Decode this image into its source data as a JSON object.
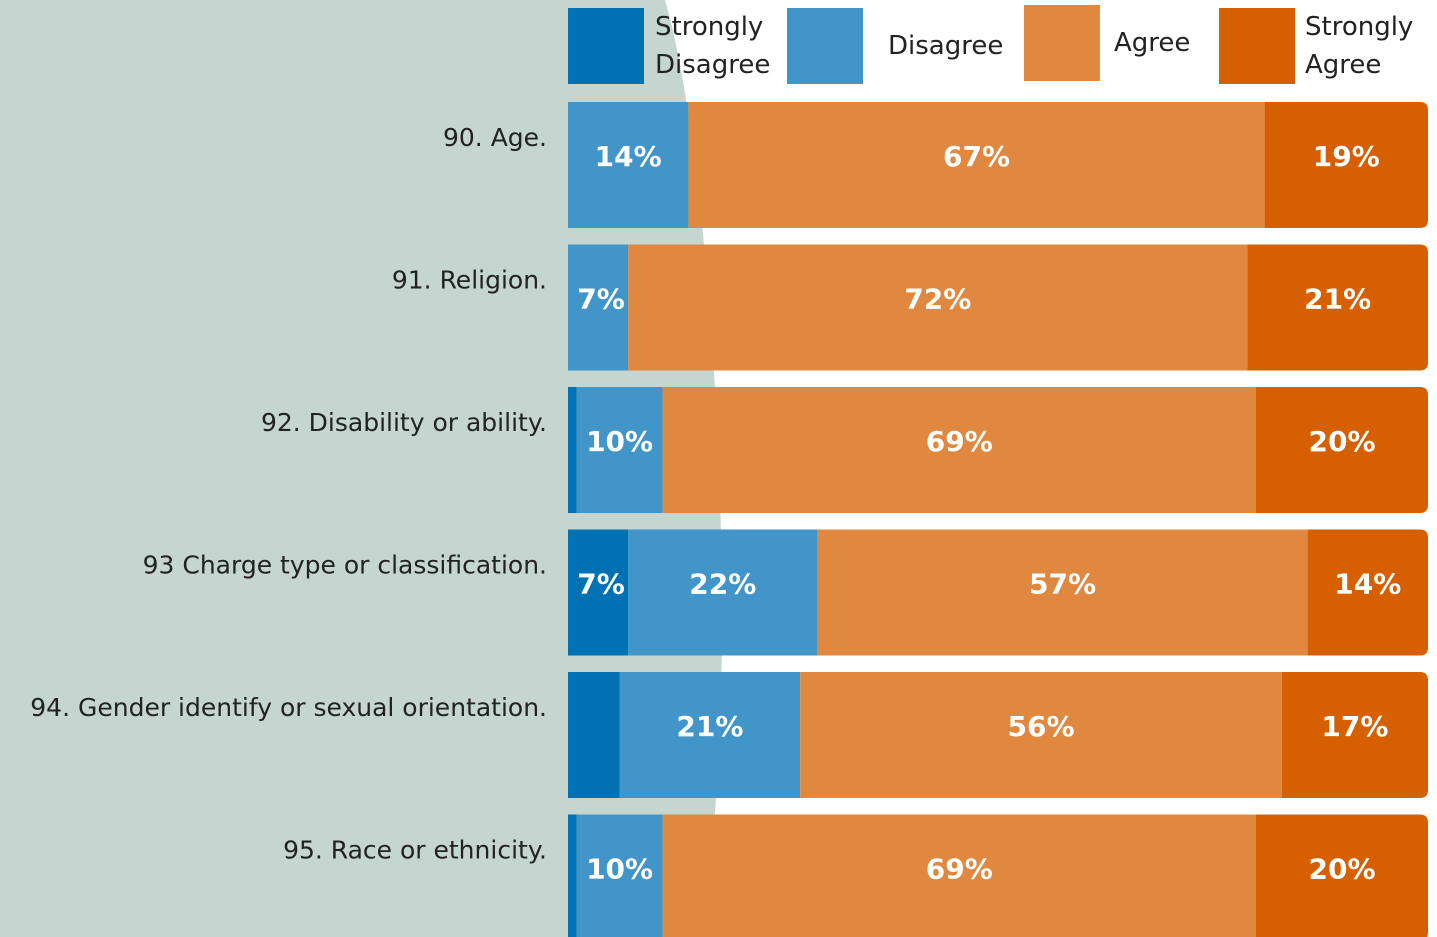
{
  "chart_data": {
    "type": "stacked-bar-horizontal",
    "categories": [
      "90. Age.",
      "91. Religion.",
      "92. Disability or ability.",
      "93 Charge type or classification.",
      "94. Gender identify or sexual orientation.",
      "95. Race or ethnicity."
    ],
    "xlim": [
      0,
      100
    ],
    "series": [
      {
        "name": "Strongly Disagree",
        "color": "#0071b3",
        "values": [
          0,
          0,
          1,
          7,
          6,
          1
        ],
        "value_labels": [
          null,
          null,
          null,
          "7%",
          null,
          null
        ]
      },
      {
        "name": "Disagree",
        "color": "#4195c8",
        "values": [
          14,
          7,
          10,
          22,
          21,
          10
        ],
        "value_labels": [
          "14%",
          "7%",
          "10%",
          "22%",
          "21%",
          "10%"
        ]
      },
      {
        "name": "Agree",
        "color": "#e08840",
        "values": [
          67,
          72,
          69,
          57,
          56,
          69
        ],
        "value_labels": [
          "67%",
          "72%",
          "69%",
          "57%",
          "56%",
          "69%"
        ]
      },
      {
        "name": "Strongly Agree",
        "color": "#d65f00",
        "values": [
          19,
          21,
          20,
          14,
          17,
          20
        ],
        "value_labels": [
          "19%",
          "21%",
          "20%",
          "14%",
          "17%",
          "20%"
        ]
      }
    ]
  }
}
